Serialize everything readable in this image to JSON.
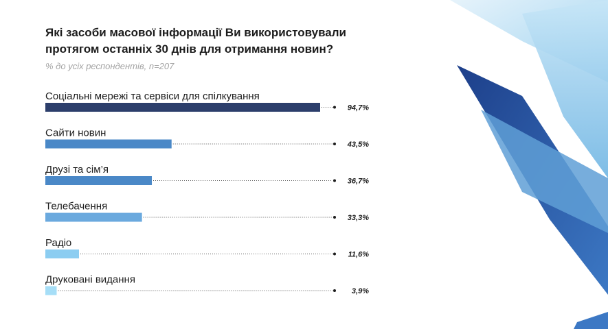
{
  "header": {
    "title": "Які засоби масової інформації Ви використовували протягом останніх 30 днів для отримання новин?",
    "subtitle": "% до усіх респондентів, n=207"
  },
  "chart_data": {
    "type": "bar",
    "title": "Які засоби масової інформації Ви використовували протягом останніх 30 днів для отримання новин?",
    "subtitle": "% до усіх респондентів, n=207",
    "categories": [
      "Соціальні мережі та сервіси для спілкування",
      "Сайти новин",
      "Друзі та сім’я",
      "Телебачення",
      "Радіо",
      "Друковані видання"
    ],
    "values": [
      94.7,
      43.5,
      36.7,
      33.3,
      11.6,
      3.9
    ],
    "value_labels": [
      "94,7%",
      "43,5%",
      "36,7%",
      "33,3%",
      "11,6%",
      "3,9%"
    ],
    "bar_colors": [
      "#2c3e6b",
      "#4a88c7",
      "#4a88c7",
      "#6aa9de",
      "#8ccdf1",
      "#a6def7"
    ],
    "xlim": [
      0,
      100
    ],
    "orientation": "horizontal",
    "grid": false,
    "legend": "none"
  }
}
